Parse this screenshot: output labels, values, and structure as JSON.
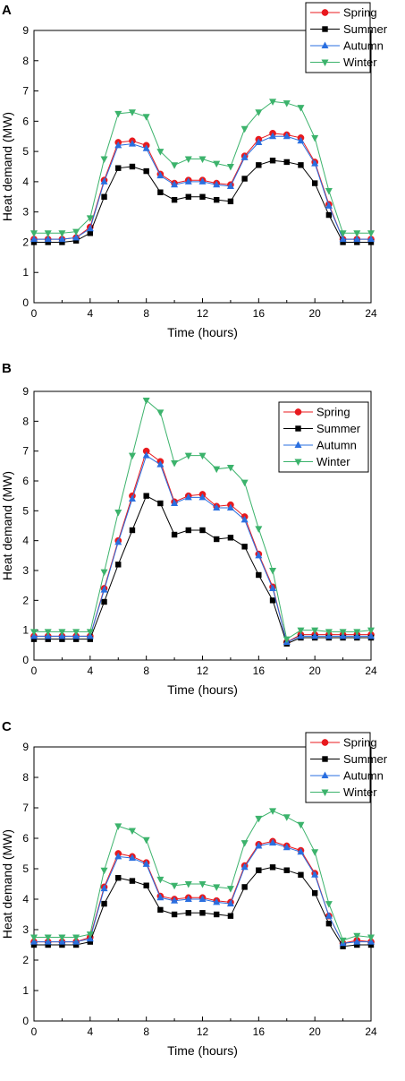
{
  "colors": {
    "spring": "#e8191e",
    "summer": "#000000",
    "autumn": "#2a6fe0",
    "winter": "#3cb36c"
  },
  "markers": {
    "spring": "circle",
    "summer": "square",
    "autumn": "triangle-up",
    "winter": "triangle-down"
  },
  "chart_data": [
    {
      "panel": "A",
      "type": "line",
      "xlabel": "Time (hours)",
      "ylabel": "Heat demand (MW)",
      "xlim": [
        0,
        24
      ],
      "ylim": [
        0,
        9
      ],
      "xticks": [
        "0",
        "4",
        "8",
        "12",
        "16",
        "20",
        "24"
      ],
      "yticks": [
        "0",
        "1",
        "2",
        "3",
        "4",
        "5",
        "6",
        "7",
        "8",
        "9"
      ],
      "legend_position": "top-right",
      "grid": false,
      "x": [
        0,
        1,
        2,
        3,
        4,
        5,
        6,
        7,
        8,
        9,
        10,
        11,
        12,
        13,
        14,
        15,
        16,
        17,
        18,
        19,
        20,
        21,
        22,
        23,
        24
      ],
      "series": [
        {
          "name": "Spring",
          "values": [
            2.1,
            2.1,
            2.1,
            2.15,
            2.5,
            4.05,
            5.3,
            5.35,
            5.2,
            4.25,
            3.95,
            4.05,
            4.05,
            3.95,
            3.9,
            4.85,
            5.4,
            5.6,
            5.55,
            5.45,
            4.65,
            3.25,
            2.1,
            2.1,
            2.1
          ]
        },
        {
          "name": "Summer",
          "values": [
            2.0,
            2.0,
            2.0,
            2.05,
            2.3,
            3.5,
            4.45,
            4.5,
            4.35,
            3.65,
            3.4,
            3.5,
            3.5,
            3.4,
            3.35,
            4.1,
            4.55,
            4.7,
            4.65,
            4.55,
            3.95,
            2.9,
            2.0,
            2.0,
            2.0
          ]
        },
        {
          "name": "Autumn",
          "values": [
            2.1,
            2.1,
            2.1,
            2.15,
            2.45,
            4.0,
            5.2,
            5.25,
            5.1,
            4.2,
            3.9,
            4.0,
            4.0,
            3.9,
            3.85,
            4.8,
            5.3,
            5.5,
            5.5,
            5.35,
            4.6,
            3.2,
            2.1,
            2.1,
            2.1
          ]
        },
        {
          "name": "Winter",
          "values": [
            2.3,
            2.3,
            2.3,
            2.35,
            2.8,
            4.75,
            6.25,
            6.3,
            6.15,
            5.0,
            4.55,
            4.75,
            4.75,
            4.6,
            4.5,
            5.75,
            6.3,
            6.65,
            6.6,
            6.45,
            5.45,
            3.7,
            2.3,
            2.3,
            2.3
          ]
        }
      ]
    },
    {
      "panel": "B",
      "type": "line",
      "xlabel": "Time (hours)",
      "ylabel": "Heat demand (MW)",
      "xlim": [
        0,
        24
      ],
      "ylim": [
        0,
        9
      ],
      "xticks": [
        "0",
        "4",
        "8",
        "12",
        "16",
        "20",
        "24"
      ],
      "yticks": [
        "0",
        "1",
        "2",
        "3",
        "4",
        "5",
        "6",
        "7",
        "8",
        "9"
      ],
      "legend_position": "right",
      "grid": false,
      "x": [
        0,
        1,
        2,
        3,
        4,
        5,
        6,
        7,
        8,
        9,
        10,
        11,
        12,
        13,
        14,
        15,
        16,
        17,
        18,
        19,
        20,
        21,
        22,
        23,
        24
      ],
      "series": [
        {
          "name": "Spring",
          "values": [
            0.8,
            0.8,
            0.8,
            0.8,
            0.8,
            2.4,
            4.0,
            5.5,
            7.0,
            6.65,
            5.3,
            5.5,
            5.55,
            5.15,
            5.2,
            4.8,
            3.55,
            2.45,
            0.6,
            0.85,
            0.85,
            0.85,
            0.85,
            0.85,
            0.85
          ]
        },
        {
          "name": "Summer",
          "values": [
            0.7,
            0.7,
            0.7,
            0.7,
            0.7,
            1.95,
            3.2,
            4.35,
            5.5,
            5.25,
            4.2,
            4.35,
            4.35,
            4.05,
            4.1,
            3.8,
            2.85,
            2.0,
            0.55,
            0.75,
            0.75,
            0.75,
            0.75,
            0.75,
            0.75
          ]
        },
        {
          "name": "Autumn",
          "values": [
            0.8,
            0.8,
            0.8,
            0.8,
            0.8,
            2.35,
            3.95,
            5.4,
            6.85,
            6.55,
            5.25,
            5.45,
            5.45,
            5.1,
            5.1,
            4.7,
            3.5,
            2.4,
            0.6,
            0.8,
            0.8,
            0.8,
            0.8,
            0.8,
            0.8
          ]
        },
        {
          "name": "Winter",
          "values": [
            0.95,
            0.95,
            0.95,
            0.95,
            0.95,
            2.95,
            4.95,
            6.85,
            8.7,
            8.3,
            6.6,
            6.85,
            6.85,
            6.4,
            6.45,
            5.95,
            4.4,
            3.0,
            0.7,
            1.0,
            1.0,
            0.95,
            0.95,
            0.95,
            1.0
          ]
        }
      ]
    },
    {
      "panel": "C",
      "type": "line",
      "xlabel": "Time (hours)",
      "ylabel": "Heat demand (MW)",
      "xlim": [
        0,
        24
      ],
      "ylim": [
        0,
        9
      ],
      "xticks": [
        "0",
        "4",
        "8",
        "12",
        "16",
        "20",
        "24"
      ],
      "yticks": [
        "0",
        "1",
        "2",
        "3",
        "4",
        "5",
        "6",
        "7",
        "8",
        "9"
      ],
      "legend_position": "top-right",
      "grid": false,
      "x": [
        0,
        1,
        2,
        3,
        4,
        5,
        6,
        7,
        8,
        9,
        10,
        11,
        12,
        13,
        14,
        15,
        16,
        17,
        18,
        19,
        20,
        21,
        22,
        23,
        24
      ],
      "series": [
        {
          "name": "Spring",
          "values": [
            2.6,
            2.6,
            2.6,
            2.6,
            2.75,
            4.4,
            5.5,
            5.4,
            5.2,
            4.1,
            4.0,
            4.05,
            4.05,
            3.95,
            3.9,
            5.1,
            5.8,
            5.9,
            5.75,
            5.6,
            4.85,
            3.45,
            2.55,
            2.65,
            2.6
          ]
        },
        {
          "name": "Summer",
          "values": [
            2.5,
            2.5,
            2.5,
            2.5,
            2.6,
            3.85,
            4.7,
            4.6,
            4.45,
            3.65,
            3.5,
            3.55,
            3.55,
            3.5,
            3.45,
            4.4,
            4.95,
            5.05,
            4.95,
            4.8,
            4.2,
            3.2,
            2.45,
            2.5,
            2.5
          ]
        },
        {
          "name": "Autumn",
          "values": [
            2.6,
            2.6,
            2.6,
            2.6,
            2.7,
            4.35,
            5.4,
            5.35,
            5.15,
            4.05,
            3.95,
            4.0,
            4.0,
            3.9,
            3.85,
            5.05,
            5.75,
            5.85,
            5.7,
            5.55,
            4.8,
            3.45,
            2.55,
            2.6,
            2.6
          ]
        },
        {
          "name": "Winter",
          "values": [
            2.75,
            2.75,
            2.75,
            2.75,
            2.85,
            4.95,
            6.4,
            6.25,
            5.95,
            4.65,
            4.45,
            4.5,
            4.5,
            4.4,
            4.35,
            5.85,
            6.65,
            6.9,
            6.7,
            6.45,
            5.55,
            3.85,
            2.65,
            2.8,
            2.75
          ]
        }
      ]
    }
  ]
}
